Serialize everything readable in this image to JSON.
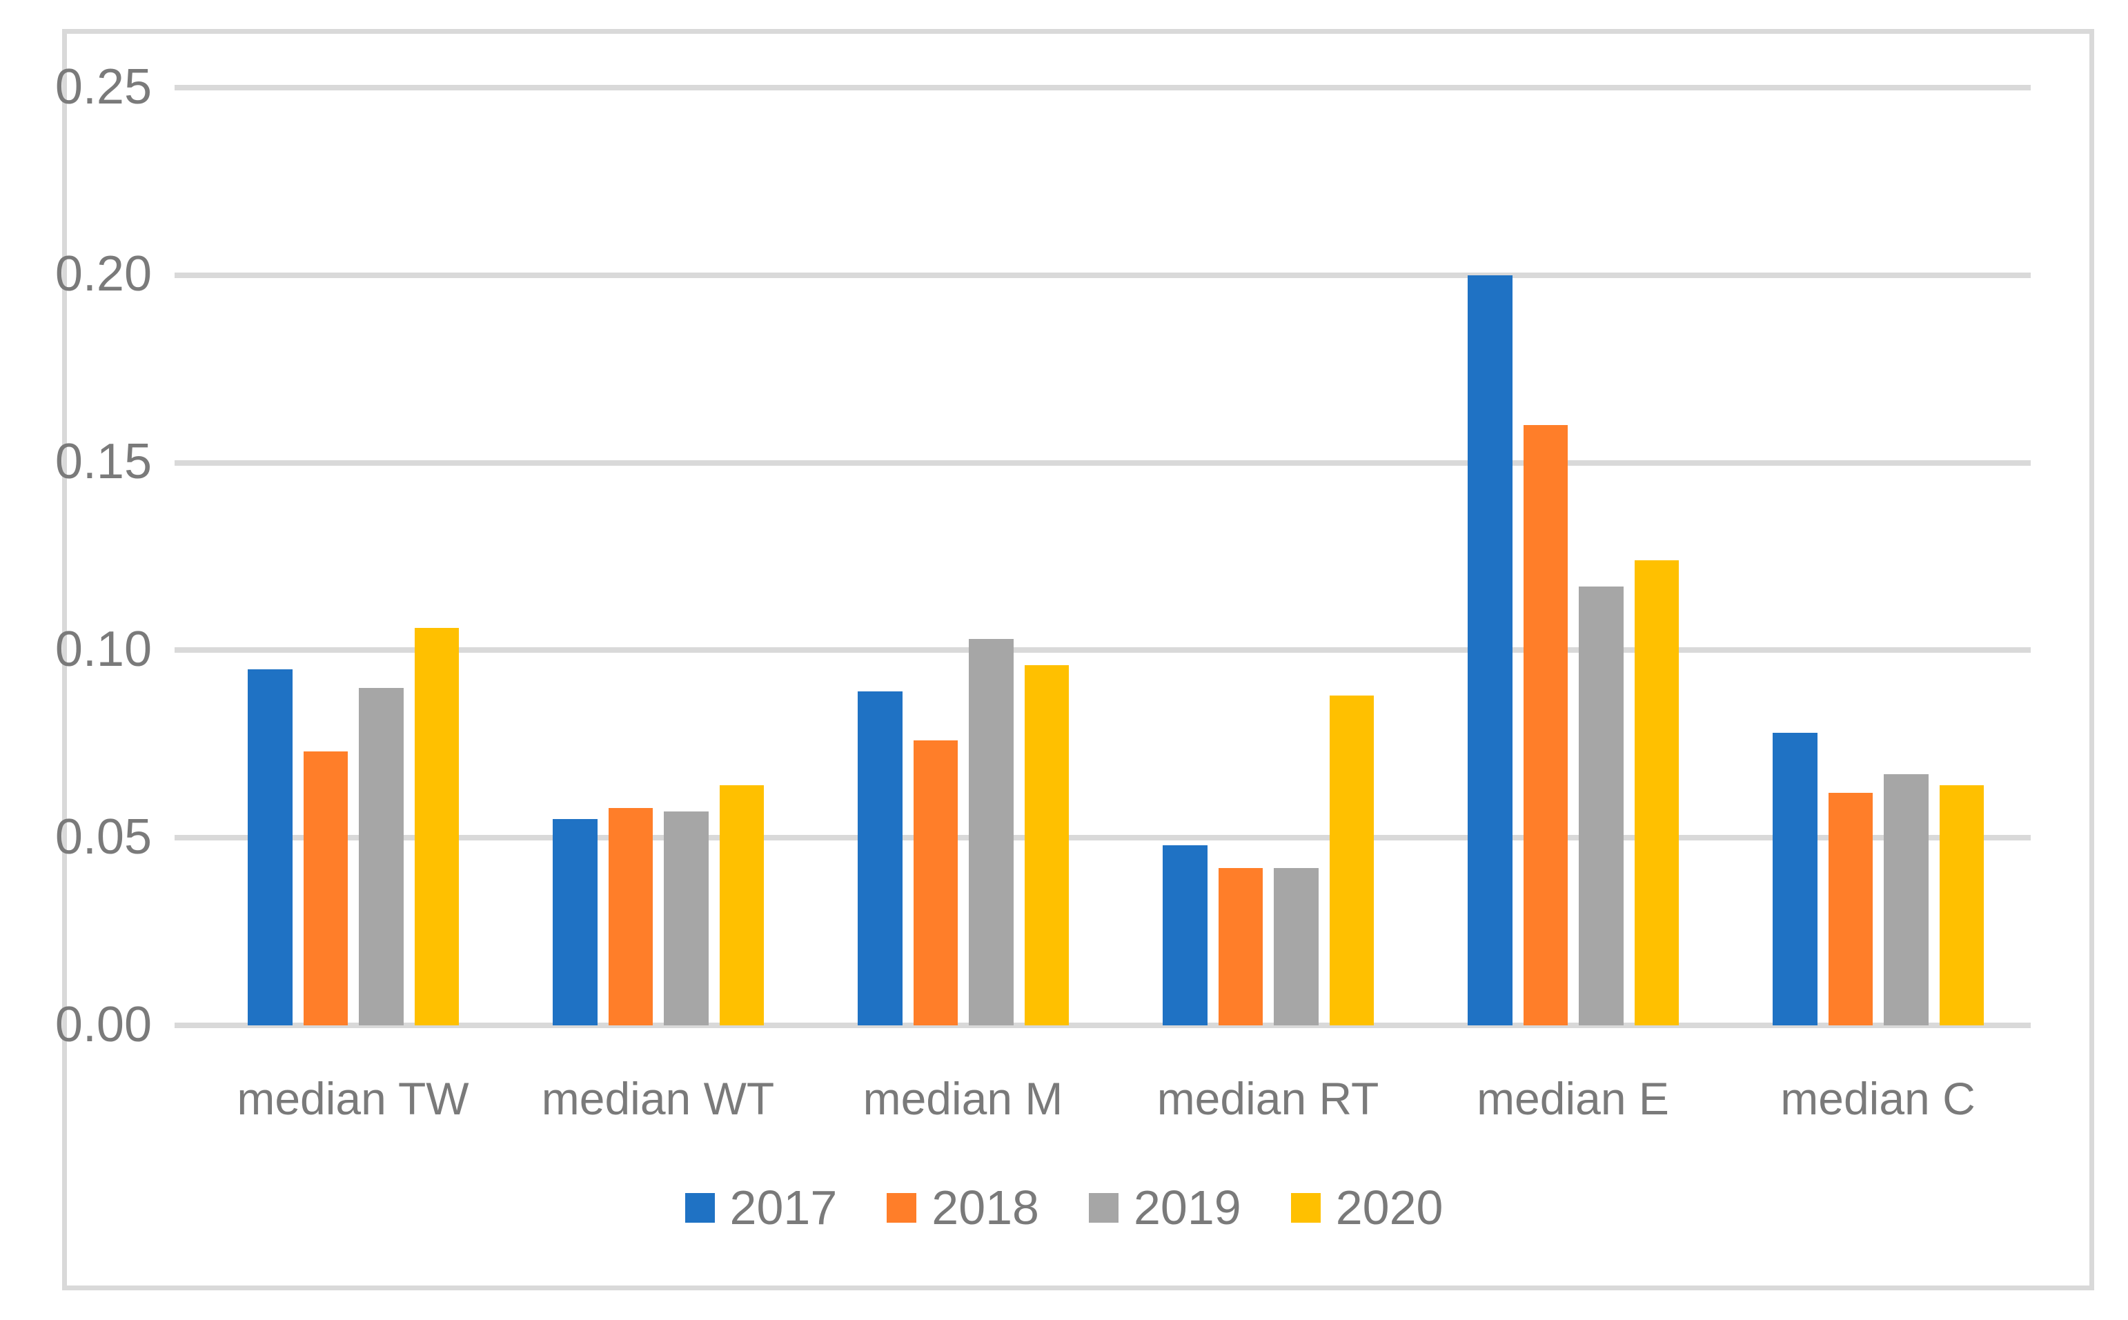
{
  "chart_data": {
    "type": "bar",
    "title": "",
    "xlabel": "",
    "ylabel": "",
    "categories": [
      "median TW",
      "median WT",
      "median M",
      "median RT",
      "median E",
      "median C"
    ],
    "series": [
      {
        "name": "2017",
        "color": "#1F72C4",
        "values": [
          0.095,
          0.055,
          0.089,
          0.048,
          0.2,
          0.078
        ]
      },
      {
        "name": "2018",
        "color": "#FF7E29",
        "values": [
          0.073,
          0.058,
          0.076,
          0.042,
          0.16,
          0.062
        ]
      },
      {
        "name": "2019",
        "color": "#A6A6A6",
        "values": [
          0.09,
          0.057,
          0.103,
          0.042,
          0.117,
          0.067
        ]
      },
      {
        "name": "2020",
        "color": "#FFC000",
        "values": [
          0.106,
          0.064,
          0.096,
          0.088,
          0.124,
          0.064
        ]
      }
    ],
    "ylim": [
      0,
      0.25
    ],
    "ytick_step": 0.05,
    "ytick_labels": [
      "0.00",
      "0.05",
      "0.10",
      "0.15",
      "0.20",
      "0.25"
    ],
    "grid": true,
    "legend_position": "bottom",
    "styles": {
      "gridline_color": "#D9D9D9",
      "frame_color": "#D9D9D9",
      "text_color": "#7A7A7A",
      "background": "#FFFFFF"
    }
  }
}
